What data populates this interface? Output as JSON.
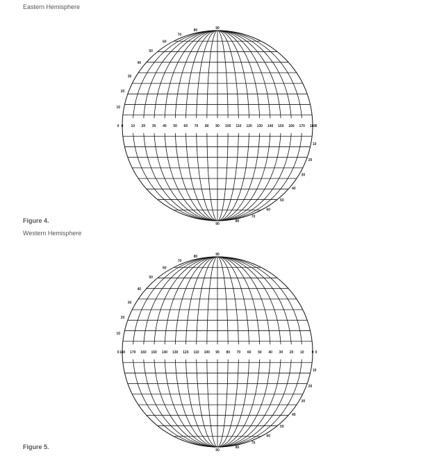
{
  "figures": [
    {
      "heading": "Eastern Hemisphere",
      "caption": "Figure 4.",
      "equator_labels": [
        "0",
        "10",
        "20",
        "30",
        "40",
        "50",
        "60",
        "70",
        "80",
        "90",
        "100",
        "110",
        "120",
        "130",
        "140",
        "150",
        "160",
        "170",
        "180"
      ],
      "left_end_label": "0",
      "right_end_label": "0",
      "pole_label": "90",
      "north_lat_labels": [
        "10",
        "20",
        "30",
        "40",
        "50",
        "60",
        "70",
        "80"
      ],
      "south_lat_labels": [
        "10",
        "20",
        "30",
        "40",
        "50",
        "60",
        "70",
        "80"
      ]
    },
    {
      "heading": "Western Hemisphere",
      "caption": "Figure 5.",
      "equator_labels": [
        "180",
        "170",
        "160",
        "150",
        "140",
        "130",
        "120",
        "110",
        "100",
        "90",
        "80",
        "70",
        "60",
        "50",
        "40",
        "30",
        "20",
        "10",
        "0"
      ],
      "left_end_label": "0",
      "right_end_label": "0",
      "pole_label": "90",
      "north_lat_labels": [
        "10",
        "20",
        "30",
        "40",
        "50",
        "60",
        "70",
        "80"
      ],
      "south_lat_labels": [
        "10",
        "20",
        "30",
        "40",
        "50",
        "60",
        "70",
        "80"
      ]
    }
  ]
}
